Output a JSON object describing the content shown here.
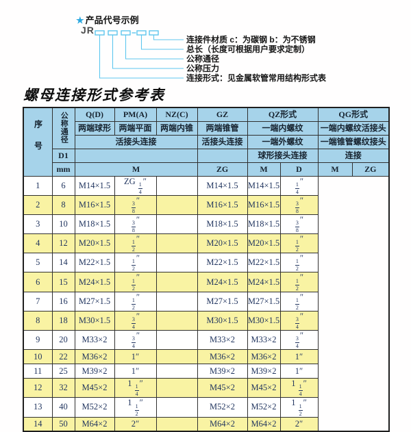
{
  "diagram": {
    "star": "★",
    "heading": "产品代号示例",
    "code_prefix": "JR",
    "labels": [
      "连接件材质  c：为碳钢  b：为不锈钢",
      "总长（长度可根据用户要求定制）",
      "公称通径",
      "公称压力",
      "连接形式：见金属软管常用结构形式表"
    ]
  },
  "table": {
    "title": "螺母连接形式参考表",
    "header": {
      "seq": "序号",
      "dn": "公称通径",
      "d1": "D1",
      "mm": "mm",
      "q": "Q(D)",
      "pm": "PM(A)",
      "nz": "NZ(C)",
      "gz": "GZ",
      "qz": "QZ形式",
      "qg": "QG形式",
      "q_desc": "两端球形",
      "pm_desc": "两端平面",
      "nz_desc": "两端内锥",
      "gz_desc": "两端锥管",
      "qz_desc1": "一端内螺纹",
      "qg_desc1": "一端内螺纹活接头",
      "left_conn": "活接头连接",
      "gz_conn": "活接头连接",
      "qz_desc2": "一端外螺纹",
      "qg_desc2": "一端锥管螺纹接头",
      "qz_conn": "球形接头连接",
      "qg_conn": "连接",
      "m_left": "M",
      "zg_gz": "ZG",
      "qz_m": "M",
      "qz_d": "D",
      "qg_m": "M",
      "qg_zg": "ZG"
    },
    "rows": [
      {
        "seq": "1",
        "dn": "6",
        "m": "M14×1.5",
        "gz": "ZG 1/4″",
        "qz_m": "",
        "qz_d": "M14×1.5",
        "qg_m": "M14×1.5",
        "qg_zg": "1/4″"
      },
      {
        "seq": "2",
        "dn": "8",
        "m": "M16×1.5",
        "gz": "3/8″",
        "qz_m": "",
        "qz_d": "M16×1.5",
        "qg_m": "M16×1.5",
        "qg_zg": "3/8″"
      },
      {
        "seq": "3",
        "dn": "10",
        "m": "M18×1.5",
        "gz": "3/8″",
        "qz_m": "",
        "qz_d": "M18×1.5",
        "qg_m": "M18×1.5",
        "qg_zg": "3/8″"
      },
      {
        "seq": "4",
        "dn": "12",
        "m": "M20×1.5",
        "gz": "1/2″",
        "qz_m": "",
        "qz_d": "M20×1.5",
        "qg_m": "M20×1.5",
        "qg_zg": "1/2″"
      },
      {
        "seq": "5",
        "dn": "14",
        "m": "M22×1.5",
        "gz": "1/2″",
        "qz_m": "",
        "qz_d": "M22×1.5",
        "qg_m": "M22×1.5",
        "qg_zg": "1/2″"
      },
      {
        "seq": "6",
        "dn": "15",
        "m": "M24×1.5",
        "gz": "1/2″",
        "qz_m": "",
        "qz_d": "M24×1.5",
        "qg_m": "M24×1.5",
        "qg_zg": "1/2″"
      },
      {
        "seq": "7",
        "dn": "16",
        "m": "M27×1.5",
        "gz": "1/2″",
        "qz_m": "",
        "qz_d": "M27×1.5",
        "qg_m": "M27×1.5",
        "qg_zg": "1/2″"
      },
      {
        "seq": "8",
        "dn": "18",
        "m": "M30×1.5",
        "gz": "3/4″",
        "qz_m": "",
        "qz_d": "M30×1.5",
        "qg_m": "M30×1.5",
        "qg_zg": "3/4″"
      },
      {
        "seq": "9",
        "dn": "20",
        "m": "M33×2",
        "gz": "3/4″",
        "qz_m": "",
        "qz_d": "M33×2",
        "qg_m": "M33×2",
        "qg_zg": "3/4″"
      },
      {
        "seq": "10",
        "dn": "22",
        "m": "M36×2",
        "gz": "1″",
        "qz_m": "",
        "qz_d": "M36×2",
        "qg_m": "M36×2",
        "qg_zg": "1″"
      },
      {
        "seq": "11",
        "dn": "25",
        "m": "M39×2",
        "gz": "1″",
        "qz_m": "",
        "qz_d": "M39×2",
        "qg_m": "M39×2",
        "qg_zg": "1″"
      },
      {
        "seq": "12",
        "dn": "32",
        "m": "M45×2",
        "gz": "1 1/4″",
        "qz_m": "",
        "qz_d": "M45×2",
        "qg_m": "M45×2",
        "qg_zg": "1 1/4″"
      },
      {
        "seq": "13",
        "dn": "40",
        "m": "M52×2",
        "gz": "1 1/2″",
        "qz_m": "",
        "qz_d": "M52×2",
        "qg_m": "M52×2",
        "qg_zg": "1 1/2″"
      },
      {
        "seq": "14",
        "dn": "50",
        "m": "M64×2",
        "gz": "2″",
        "qz_m": "",
        "qz_d": "M64×2",
        "qg_m": "M64×2",
        "qg_zg": "2″"
      }
    ]
  },
  "colors": {
    "header_blue": "#A6D3EA",
    "row_yellow": "#F9F3A3",
    "row_white": "#FFFFFF",
    "border_dark": "#2F2F2F",
    "data_text_navy": "#21355F",
    "diagram_line_blue": "#5CC6EE",
    "star_blue": "#2BA8E0"
  }
}
